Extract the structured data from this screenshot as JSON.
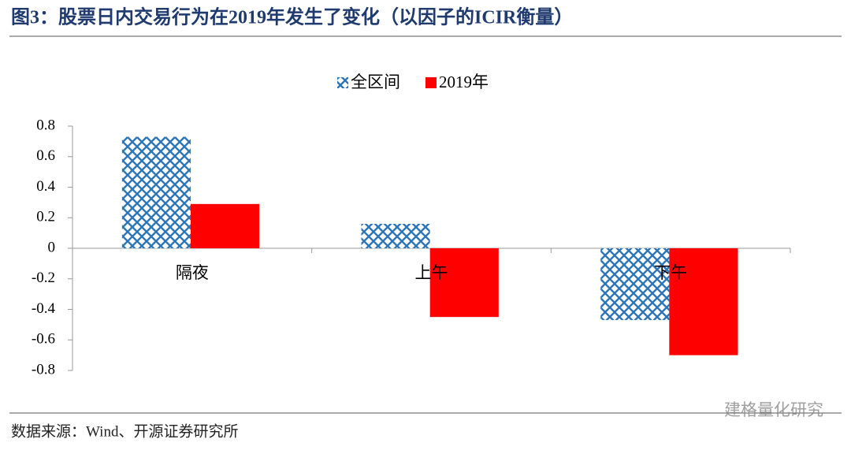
{
  "chart_data": {
    "type": "bar",
    "title": "图3：股票日内交易行为在2019年发生了变化（以因子的ICIR衡量）",
    "source": "数据来源：Wind、开源证券研究所",
    "watermark": "建格量化研究",
    "categories": [
      "隔夜",
      "上午",
      "下午"
    ],
    "series": [
      {
        "name": "全区间",
        "color": "#2e75b6",
        "pattern": "crosshatch",
        "values": [
          0.73,
          0.16,
          -0.47
        ]
      },
      {
        "name": "2019年",
        "color": "#ff0000",
        "values": [
          0.29,
          -0.45,
          -0.7
        ]
      }
    ],
    "ylim": [
      -0.8,
      0.8
    ],
    "yticks": [
      0.8,
      0.6,
      0.4,
      0.2,
      0,
      -0.2,
      -0.4,
      -0.6,
      -0.8
    ],
    "legend": "top"
  }
}
